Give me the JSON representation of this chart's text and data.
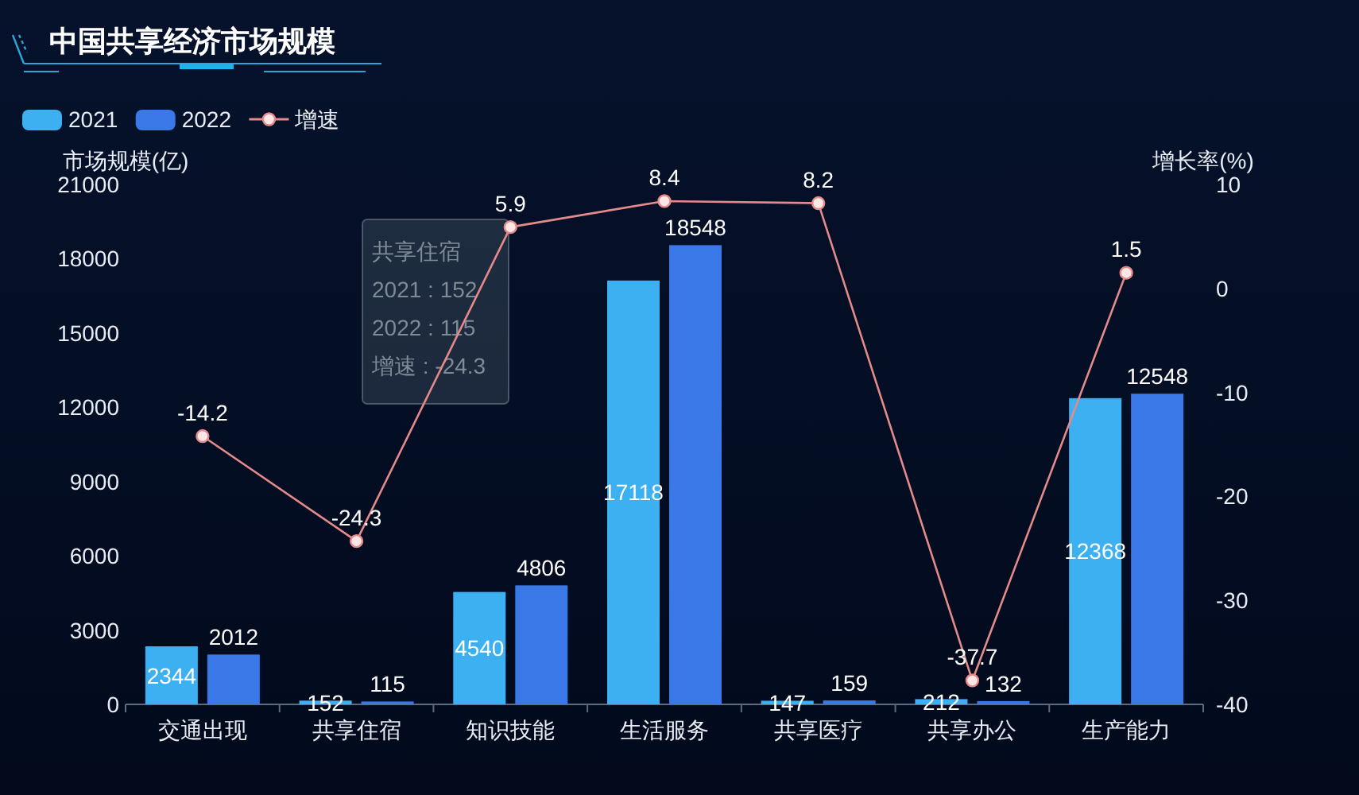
{
  "chart_data": {
    "type": "bar",
    "title": "中国共享经济市场规模",
    "categories": [
      "交通出现",
      "共享住宿",
      "知识技能",
      "生活服务",
      "共享医疗",
      "共享办公",
      "生产能力"
    ],
    "series": [
      {
        "name": "2021",
        "color": "#3db0f2",
        "values": [
          2344,
          152,
          4540,
          17118,
          147,
          212,
          12368
        ]
      },
      {
        "name": "2022",
        "color": "#3a78e8",
        "values": [
          2012,
          115,
          4806,
          18548,
          159,
          132,
          12548
        ]
      },
      {
        "name": "增速",
        "type": "line",
        "axis": "y2",
        "color": "#e48a8a",
        "values": [
          -14.2,
          -24.3,
          5.9,
          8.4,
          8.2,
          -37.7,
          1.5
        ]
      }
    ],
    "ylabel": "市场规模(亿)",
    "y2label": "增长率(%)",
    "ylim": [
      0,
      21000
    ],
    "yticks": [
      0,
      3000,
      6000,
      9000,
      12000,
      15000,
      18000,
      21000
    ],
    "y2lim": [
      -40,
      10
    ],
    "y2ticks": [
      -40,
      -30,
      -20,
      -10,
      0,
      10
    ],
    "data_labels": true,
    "legend": "top left",
    "marker": "circle",
    "annotations": [
      "共享住宿",
      "2021 : 152",
      "2022 : 115",
      "增速 : -24.3"
    ]
  }
}
